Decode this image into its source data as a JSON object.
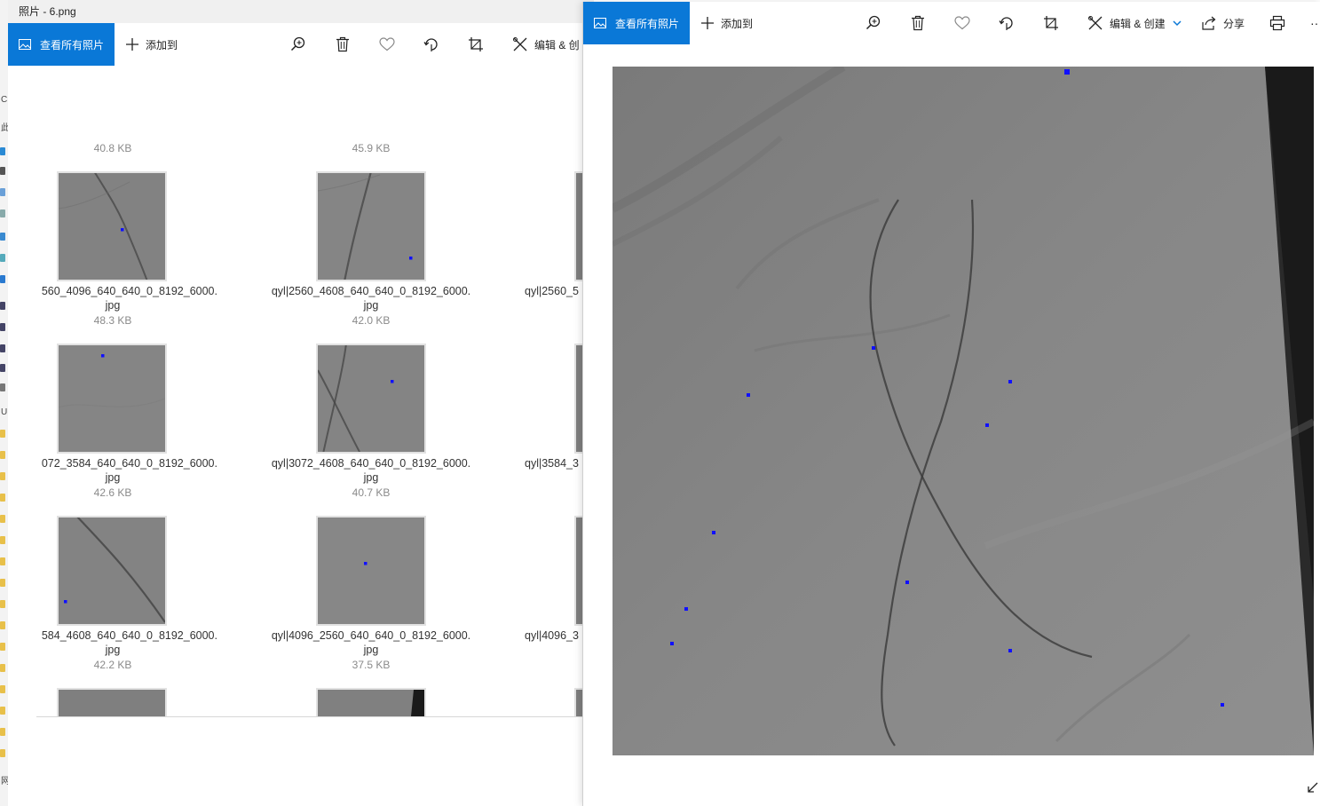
{
  "strip": {
    "glyphs": [
      "C",
      "此",
      "U",
      "网"
    ]
  },
  "win1": {
    "title": "照片 - 6.png",
    "toolbar": {
      "view_all": "查看所有照片",
      "add_to": "添加到",
      "edit_create": "编辑 & 创"
    },
    "top_sizes": [
      "40.8 KB",
      "45.9 KB"
    ],
    "rows": [
      {
        "items": [
          {
            "name_line1": "560_4096_640_640_0_8192_6000.",
            "name_line2": "jpg",
            "size": "48.3 KB"
          },
          {
            "name_line1": "qyl|2560_4608_640_640_0_8192_6000.",
            "name_line2": "jpg",
            "size": "42.0 KB"
          },
          {
            "name_line1": "qyl|2560_5",
            "name_line2": "",
            "size": ""
          }
        ]
      },
      {
        "items": [
          {
            "name_line1": "072_3584_640_640_0_8192_6000.",
            "name_line2": "jpg",
            "size": "42.6 KB"
          },
          {
            "name_line1": "qyl|3072_4608_640_640_0_8192_6000.",
            "name_line2": "jpg",
            "size": "40.7 KB"
          },
          {
            "name_line1": "qyl|3584_3",
            "name_line2": "",
            "size": ""
          }
        ]
      },
      {
        "items": [
          {
            "name_line1": "584_4608_640_640_0_8192_6000.",
            "name_line2": "jpg",
            "size": "42.2 KB"
          },
          {
            "name_line1": "qyl|4096_2560_640_640_0_8192_6000.",
            "name_line2": "jpg",
            "size": "37.5 KB"
          },
          {
            "name_line1": "qyl|4096_3",
            "name_line2": "",
            "size": ""
          }
        ]
      }
    ]
  },
  "win2": {
    "toolbar": {
      "view_all": "查看所有照片",
      "add_to": "添加到",
      "edit_create": "编辑 & 创建",
      "share": "分享",
      "more": "···"
    }
  },
  "colors": {
    "accent": "#0a78d7",
    "marker": "#1010ff"
  }
}
